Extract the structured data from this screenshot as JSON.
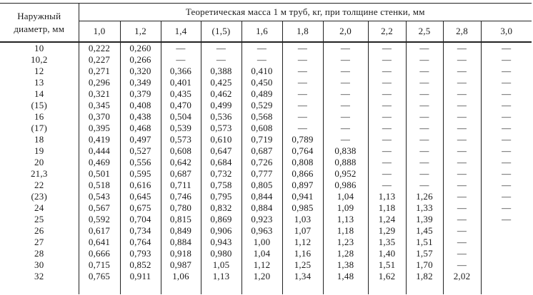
{
  "table": {
    "diameter_header_line1": "Наружный",
    "diameter_header_line2": "диаметр,  мм",
    "mass_header": "Теоретическая масса 1 м труб, кг, при толщине стенки, мм",
    "thickness_columns": [
      "1,0",
      "1,2",
      "1,4",
      "(1,5)",
      "1,6",
      "1,8",
      "2,0",
      "2,2",
      "2,5",
      "2,8",
      "3,0"
    ],
    "rows": [
      {
        "diameter": "10",
        "values": [
          "0,222",
          "0,260",
          "—",
          "—",
          "—",
          "—",
          "—",
          "—",
          "—",
          "—",
          "—"
        ]
      },
      {
        "diameter": "10,2",
        "values": [
          "0,227",
          "0,266",
          "—",
          "—",
          "—",
          "—",
          "—",
          "—",
          "—",
          "—",
          "—"
        ]
      },
      {
        "diameter": "12",
        "values": [
          "0,271",
          "0,320",
          "0,366",
          "0,388",
          "0,410",
          "—",
          "—",
          "—",
          "—",
          "—",
          "—"
        ]
      },
      {
        "diameter": "13",
        "values": [
          "0,296",
          "0,349",
          "0,401",
          "0,425",
          "0,450",
          "—",
          "—",
          "—",
          "—",
          "—",
          "—"
        ]
      },
      {
        "diameter": "14",
        "values": [
          "0,321",
          "0,379",
          "0,435",
          "0,462",
          "0,489",
          "—",
          "—",
          "—",
          "—",
          "—",
          "—"
        ]
      },
      {
        "diameter": "(15)",
        "values": [
          "0,345",
          "0,408",
          "0,470",
          "0,499",
          "0,529",
          "—",
          "—",
          "—",
          "—",
          "—",
          "—"
        ]
      },
      {
        "diameter": "16",
        "values": [
          "0,370",
          "0,438",
          "0,504",
          "0,536",
          "0,568",
          "—",
          "—",
          "—",
          "—",
          "—",
          "—"
        ]
      },
      {
        "diameter": "(17)",
        "values": [
          "0,395",
          "0,468",
          "0,539",
          "0,573",
          "0,608",
          "—",
          "—",
          "—",
          "—",
          "—",
          "—"
        ]
      },
      {
        "diameter": "18",
        "values": [
          "0,419",
          "0,497",
          "0,573",
          "0,610",
          "0,719",
          "0,789",
          "—",
          "—",
          "—",
          "—",
          "—"
        ]
      },
      {
        "diameter": "19",
        "values": [
          "0,444",
          "0,527",
          "0,608",
          "0,647",
          "0,687",
          "0,764",
          "0,838",
          "—",
          "—",
          "—",
          "—"
        ]
      },
      {
        "diameter": "20",
        "values": [
          "0,469",
          "0,556",
          "0,642",
          "0,684",
          "0,726",
          "0,808",
          "0,888",
          "—",
          "—",
          "—",
          "—"
        ]
      },
      {
        "diameter": "21,3",
        "values": [
          "0,501",
          "0,595",
          "0,687",
          "0,732",
          "0,777",
          "0,866",
          "0,952",
          "—",
          "—",
          "—",
          "—"
        ]
      },
      {
        "diameter": "22",
        "values": [
          "0,518",
          "0,616",
          "0,711",
          "0,758",
          "0,805",
          "0,897",
          "0,986",
          "—",
          "—",
          "—",
          "—"
        ]
      },
      {
        "diameter": "(23)",
        "values": [
          "0,543",
          "0,645",
          "0,746",
          "0,795",
          "0,844",
          "0,941",
          "1,04",
          "1,13",
          "1,26",
          "—",
          "—"
        ]
      },
      {
        "diameter": "24",
        "values": [
          "0,567",
          "0,675",
          "0,780",
          "0,832",
          "0,884",
          "0,985",
          "1,09",
          "1,18",
          "1,33",
          "—",
          "—"
        ]
      },
      {
        "diameter": "25",
        "values": [
          "0,592",
          "0,704",
          "0,815",
          "0,869",
          "0,923",
          "1,03",
          "1,13",
          "1,24",
          "1,39",
          "—",
          "—"
        ]
      },
      {
        "diameter": "26",
        "values": [
          "0,617",
          "0,734",
          "0,849",
          "0,906",
          "0,963",
          "1,07",
          "1,18",
          "1,29",
          "1,45",
          "—",
          ""
        ]
      },
      {
        "diameter": "27",
        "values": [
          "0,641",
          "0,764",
          "0,884",
          "0,943",
          "1,00",
          "1,12",
          "1,23",
          "1,35",
          "1,51",
          "—",
          ""
        ]
      },
      {
        "diameter": "28",
        "values": [
          "0,666",
          "0,793",
          "0,918",
          "0,980",
          "1,04",
          "1,16",
          "1,28",
          "1,40",
          "1,57",
          "—",
          ""
        ]
      },
      {
        "diameter": "30",
        "values": [
          "0,715",
          "0,852",
          "0,987",
          "1,05",
          "1,12",
          "1,25",
          "1,38",
          "1,51",
          "1,70",
          "—",
          ""
        ]
      },
      {
        "diameter": "32",
        "values": [
          "0,765",
          "0,911",
          "1,06",
          "1,13",
          "1,20",
          "1,34",
          "1,48",
          "1,62",
          "1,82",
          "2,02",
          ""
        ]
      }
    ]
  }
}
